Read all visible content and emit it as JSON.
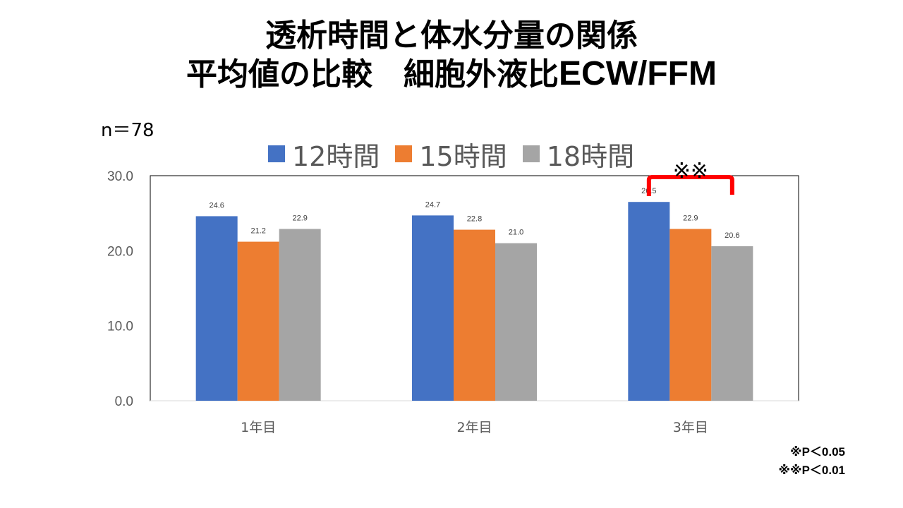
{
  "title_line1": "透析時間と体水分量の関係",
  "title_line2_jp": "平均値の比較　細胞外液比",
  "title_line2_en": "ECW/FFM",
  "sample_size": "n＝78",
  "footnotes": [
    "※P＜0.05",
    "※※P＜0.01"
  ],
  "significance": {
    "mark": "※※",
    "category_index": 2,
    "between_series": [
      0,
      2
    ]
  },
  "colors": {
    "series": [
      "#4472C4",
      "#ED7D31",
      "#A5A5A5"
    ],
    "bracket": "#FF0000",
    "axis": "#D9D9D9"
  },
  "chart_data": {
    "type": "bar",
    "title": "",
    "xlabel": "",
    "ylabel": "",
    "categories": [
      "1年目",
      "2年目",
      "3年目"
    ],
    "series": [
      {
        "name": "12時間",
        "values": [
          24.6,
          24.7,
          26.5
        ]
      },
      {
        "name": "15時間",
        "values": [
          21.2,
          22.8,
          22.9
        ]
      },
      {
        "name": "18時間",
        "values": [
          22.9,
          21.0,
          20.6
        ]
      }
    ],
    "ylim": [
      0,
      30
    ],
    "yticks": [
      0,
      10,
      20,
      30
    ],
    "ytick_labels": [
      "0.0",
      "10.0",
      "20.0",
      "30.0"
    ],
    "data_labels": true,
    "grid": false,
    "legend": "top"
  }
}
